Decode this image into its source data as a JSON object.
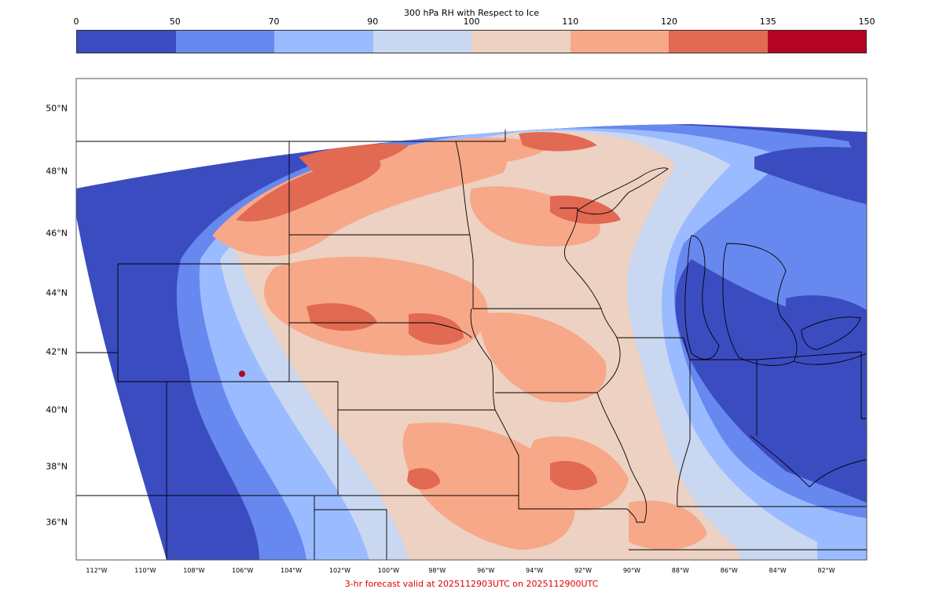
{
  "colorbar": {
    "title": "300 hPa RH with Respect to Ice",
    "ticks": [
      "0",
      "50",
      "70",
      "90",
      "100",
      "110",
      "120",
      "135",
      "150"
    ],
    "colors": [
      "#3b4cc0",
      "#6788ee",
      "#9abbff",
      "#c9d7f0",
      "#edd1c2",
      "#f7a889",
      "#e26952",
      "#b40426"
    ]
  },
  "latitude_labels": [
    "50°N",
    "48°N",
    "46°N",
    "44°N",
    "42°N",
    "40°N",
    "38°N",
    "36°N"
  ],
  "longitude_labels": [
    "112°W",
    "110°W",
    "108°W",
    "106°W",
    "104°W",
    "102°W",
    "100°W",
    "98°W",
    "96°W",
    "94°W",
    "92°W",
    "90°W",
    "88°W",
    "86°W",
    "84°W",
    "82°W"
  ],
  "footer": "3-hr forecast valid at 2025112903UTC on 2025112900UTC"
}
